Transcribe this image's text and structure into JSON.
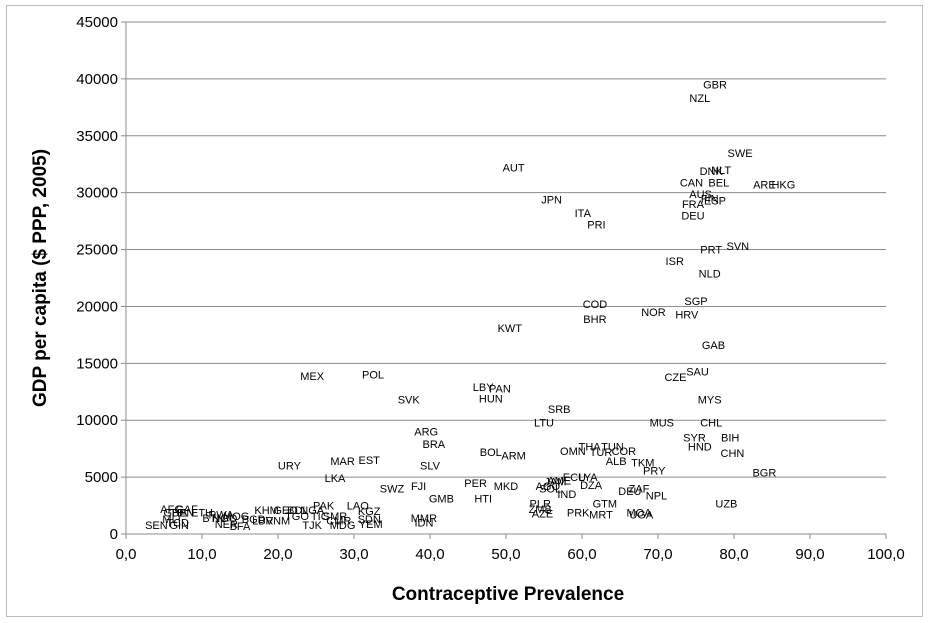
{
  "chart_data": {
    "type": "scatter",
    "xlabel": "Contraceptive Prevalence",
    "ylabel": "GDP per capita ($ PPP, 2005)",
    "xlim": [
      0,
      100
    ],
    "ylim": [
      0,
      45000
    ],
    "x_ticks": [
      "0,0",
      "10,0",
      "20,0",
      "30,0",
      "40,0",
      "50,0",
      "60,0",
      "70,0",
      "80,0",
      "90,0",
      "100,0"
    ],
    "y_ticks": [
      "0",
      "5000",
      "10000",
      "15000",
      "20000",
      "25000",
      "30000",
      "35000",
      "40000",
      "45000"
    ],
    "grid": "horizontal",
    "marker": "label",
    "points": [
      {
        "label": "GBR",
        "x": 77.5,
        "y": 39500
      },
      {
        "label": "NZL",
        "x": 75.5,
        "y": 38300
      },
      {
        "label": "SWE",
        "x": 80.8,
        "y": 33500
      },
      {
        "label": "AUT",
        "x": 51.0,
        "y": 32200
      },
      {
        "label": "DNK",
        "x": 77.0,
        "y": 31900
      },
      {
        "label": "NLT",
        "x": 78.3,
        "y": 32000
      },
      {
        "label": "CAN",
        "x": 74.4,
        "y": 30900
      },
      {
        "label": "BEL",
        "x": 78.0,
        "y": 30900
      },
      {
        "label": "ARE",
        "x": 84.0,
        "y": 30700
      },
      {
        "label": "HKG",
        "x": 86.5,
        "y": 30700
      },
      {
        "label": "AUS",
        "x": 75.6,
        "y": 29900
      },
      {
        "label": "FIN",
        "x": 76.8,
        "y": 29500
      },
      {
        "label": "ESP",
        "x": 77.5,
        "y": 29300
      },
      {
        "label": "JPN",
        "x": 56.0,
        "y": 29400
      },
      {
        "label": "FRA",
        "x": 74.6,
        "y": 29000
      },
      {
        "label": "ITA",
        "x": 60.1,
        "y": 28200
      },
      {
        "label": "DEU",
        "x": 74.6,
        "y": 28000
      },
      {
        "label": "PRI",
        "x": 61.9,
        "y": 27200
      },
      {
        "label": "PRT",
        "x": 77.0,
        "y": 25000
      },
      {
        "label": "SVN",
        "x": 80.5,
        "y": 25300
      },
      {
        "label": "ISR",
        "x": 72.2,
        "y": 24000
      },
      {
        "label": "NLD",
        "x": 76.8,
        "y": 22900
      },
      {
        "label": "SGP",
        "x": 75.0,
        "y": 20500
      },
      {
        "label": "COD",
        "x": 61.7,
        "y": 20200
      },
      {
        "label": "NOR",
        "x": 69.4,
        "y": 19500
      },
      {
        "label": "BHR",
        "x": 61.7,
        "y": 18900
      },
      {
        "label": "HRV",
        "x": 73.8,
        "y": 19300
      },
      {
        "label": "KWT",
        "x": 50.5,
        "y": 18100
      },
      {
        "label": "GAB",
        "x": 77.3,
        "y": 16600
      },
      {
        "label": "SAU",
        "x": 75.2,
        "y": 14300
      },
      {
        "label": "MEX",
        "x": 24.5,
        "y": 13900
      },
      {
        "label": "POL",
        "x": 32.5,
        "y": 14000
      },
      {
        "label": "CZE",
        "x": 72.3,
        "y": 13800
      },
      {
        "label": "LBY",
        "x": 47.0,
        "y": 12900
      },
      {
        "label": "PAN",
        "x": 49.2,
        "y": 12800
      },
      {
        "label": "HUN",
        "x": 48.0,
        "y": 11900
      },
      {
        "label": "SVK",
        "x": 37.2,
        "y": 11800
      },
      {
        "label": "MYS",
        "x": 76.8,
        "y": 11800
      },
      {
        "label": "SRB",
        "x": 57.0,
        "y": 11000
      },
      {
        "label": "LTU",
        "x": 55.0,
        "y": 9800
      },
      {
        "label": "MUS",
        "x": 70.5,
        "y": 9800
      },
      {
        "label": "CHL",
        "x": 77.0,
        "y": 9800
      },
      {
        "label": "ARG",
        "x": 39.5,
        "y": 9000
      },
      {
        "label": "BIH",
        "x": 79.5,
        "y": 8500
      },
      {
        "label": "SYR",
        "x": 74.8,
        "y": 8500
      },
      {
        "label": "BRA",
        "x": 40.5,
        "y": 7900
      },
      {
        "label": "HND",
        "x": 75.5,
        "y": 7700
      },
      {
        "label": "THA",
        "x": 61.0,
        "y": 7700
      },
      {
        "label": "TUN",
        "x": 64.0,
        "y": 7700
      },
      {
        "label": "OMN",
        "x": 58.8,
        "y": 7300
      },
      {
        "label": "TUR",
        "x": 62.5,
        "y": 7200
      },
      {
        "label": "COR",
        "x": 65.5,
        "y": 7300
      },
      {
        "label": "CHN",
        "x": 79.8,
        "y": 7100
      },
      {
        "label": "BOL",
        "x": 48.0,
        "y": 7200
      },
      {
        "label": "ARM",
        "x": 51.0,
        "y": 6900
      },
      {
        "label": "ALB",
        "x": 64.5,
        "y": 6400
      },
      {
        "label": "TKM",
        "x": 68.0,
        "y": 6300
      },
      {
        "label": "MAR",
        "x": 28.5,
        "y": 6400
      },
      {
        "label": "EST",
        "x": 32.0,
        "y": 6500
      },
      {
        "label": "URY",
        "x": 21.5,
        "y": 6000
      },
      {
        "label": "SLV",
        "x": 40.0,
        "y": 6000
      },
      {
        "label": "PRY",
        "x": 69.5,
        "y": 5600
      },
      {
        "label": "BGR",
        "x": 84.0,
        "y": 5400
      },
      {
        "label": "ECU",
        "x": 59.0,
        "y": 5000
      },
      {
        "label": "LYA",
        "x": 60.8,
        "y": 5000
      },
      {
        "label": "LKA",
        "x": 27.5,
        "y": 4900
      },
      {
        "label": "AME",
        "x": 57.0,
        "y": 4700
      },
      {
        "label": "JAM",
        "x": 56.5,
        "y": 4600
      },
      {
        "label": "PER",
        "x": 46.0,
        "y": 4500
      },
      {
        "label": "DZA",
        "x": 61.2,
        "y": 4300
      },
      {
        "label": "AGO",
        "x": 55.5,
        "y": 4200
      },
      {
        "label": "MKD",
        "x": 50.0,
        "y": 4200
      },
      {
        "label": "SOL",
        "x": 55.8,
        "y": 4000
      },
      {
        "label": "FJI",
        "x": 38.5,
        "y": 4200
      },
      {
        "label": "SWZ",
        "x": 35.0,
        "y": 4000
      },
      {
        "label": "ZAF",
        "x": 67.5,
        "y": 4000
      },
      {
        "label": "DEU",
        "x": 66.3,
        "y": 3800
      },
      {
        "label": "IND",
        "x": 58.0,
        "y": 3500
      },
      {
        "label": "NPL",
        "x": 69.8,
        "y": 3400
      },
      {
        "label": "GMB",
        "x": 41.5,
        "y": 3100
      },
      {
        "label": "HTI",
        "x": 47.0,
        "y": 3100
      },
      {
        "label": "UZB",
        "x": 79.0,
        "y": 2700
      },
      {
        "label": "GTM",
        "x": 63.0,
        "y": 2700
      },
      {
        "label": "PLR",
        "x": 54.5,
        "y": 2700
      },
      {
        "label": "ZMB",
        "x": 54.5,
        "y": 2200
      },
      {
        "label": "PAK",
        "x": 26.0,
        "y": 2500
      },
      {
        "label": "LAO",
        "x": 30.5,
        "y": 2500
      },
      {
        "label": "KHM",
        "x": 18.5,
        "y": 2100
      },
      {
        "label": "GEO",
        "x": 21.0,
        "y": 2100
      },
      {
        "label": "BDL",
        "x": 22.6,
        "y": 2100
      },
      {
        "label": "NGA",
        "x": 24.5,
        "y": 2100
      },
      {
        "label": "KGZ",
        "x": 32.0,
        "y": 2000
      },
      {
        "label": "PRK",
        "x": 59.5,
        "y": 1900
      },
      {
        "label": "MOA",
        "x": 67.5,
        "y": 1900
      },
      {
        "label": "UGA",
        "x": 67.8,
        "y": 1700
      },
      {
        "label": "MRT",
        "x": 62.5,
        "y": 1700
      },
      {
        "label": "AZE",
        "x": 54.8,
        "y": 1800
      },
      {
        "label": "MMR",
        "x": 39.2,
        "y": 1400
      },
      {
        "label": "IDN",
        "x": 39.2,
        "y": 1000
      },
      {
        "label": "AFG",
        "x": 6.0,
        "y": 2200
      },
      {
        "label": "CAF",
        "x": 8.0,
        "y": 2200
      },
      {
        "label": "GHA",
        "x": 6.5,
        "y": 1900
      },
      {
        "label": "BEN",
        "x": 7.5,
        "y": 1900
      },
      {
        "label": "ETH",
        "x": 10.0,
        "y": 1900
      },
      {
        "label": "RWA",
        "x": 12.5,
        "y": 1700
      },
      {
        "label": "MOG",
        "x": 14.5,
        "y": 1600
      },
      {
        "label": "BTN",
        "x": 11.5,
        "y": 1400
      },
      {
        "label": "MLI",
        "x": 6.0,
        "y": 1300
      },
      {
        "label": "NGO",
        "x": 13.0,
        "y": 1400
      },
      {
        "label": "LBR",
        "x": 18.0,
        "y": 1200
      },
      {
        "label": "BGD",
        "x": 16.8,
        "y": 1300
      },
      {
        "label": "VNM",
        "x": 20.0,
        "y": 1200
      },
      {
        "label": "TGO",
        "x": 22.5,
        "y": 1600
      },
      {
        "label": "TIC",
        "x": 25.5,
        "y": 1600
      },
      {
        "label": "SMR",
        "x": 27.5,
        "y": 1600
      },
      {
        "label": "CMR",
        "x": 28.0,
        "y": 1200
      },
      {
        "label": "SDN",
        "x": 32.0,
        "y": 1300
      },
      {
        "label": "YEM",
        "x": 32.2,
        "y": 900
      },
      {
        "label": "TJK",
        "x": 24.5,
        "y": 800
      },
      {
        "label": "MDG",
        "x": 28.5,
        "y": 800
      },
      {
        "label": "NER",
        "x": 13.2,
        "y": 900
      },
      {
        "label": "BFA",
        "x": 15.0,
        "y": 700
      },
      {
        "label": "SEN",
        "x": 4.0,
        "y": 800
      },
      {
        "label": "GIN",
        "x": 7.0,
        "y": 800
      },
      {
        "label": "TCD",
        "x": 6.8,
        "y": 1000
      }
    ]
  }
}
